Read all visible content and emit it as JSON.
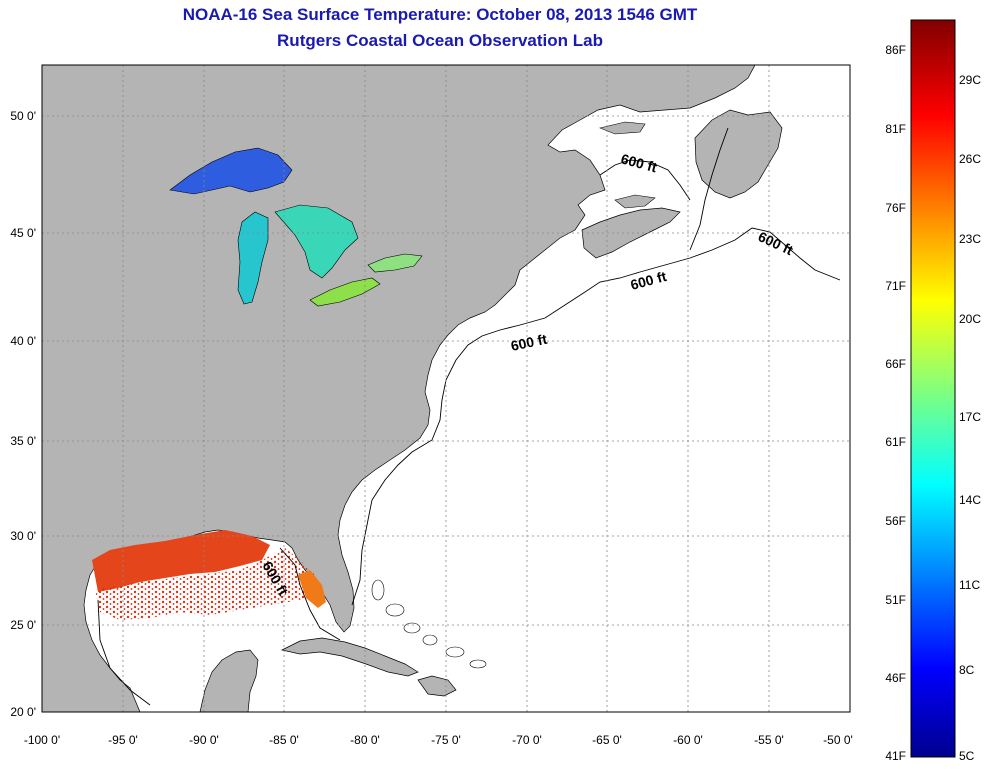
{
  "header": {
    "title": "NOAA-16 Sea Surface Temperature:  October 08, 2013 1546 GMT",
    "subtitle": "Rutgers Coastal Ocean Observation Lab"
  },
  "map": {
    "lon_ticks": [
      "-100 0'",
      "-95 0'",
      "-90 0'",
      "-85 0'",
      "-80 0'",
      "-75 0'",
      "-70 0'",
      "-65 0'",
      "-60 0'",
      "-55 0'",
      "-50 0'"
    ],
    "lat_ticks": [
      "50 0'",
      "45 0'",
      "40 0'",
      "35 0'",
      "30 0'",
      "25 0'",
      "20 0'"
    ],
    "contour_label": "600 ft",
    "colors": {
      "land": "#b4b4b4",
      "ocean": "#ffffff",
      "grid": "#888888"
    }
  },
  "colorbar": {
    "fahrenheit": [
      "86F",
      "81F",
      "76F",
      "71F",
      "66F",
      "61F",
      "56F",
      "51F",
      "46F",
      "41F"
    ],
    "celsius": [
      "29C",
      "26C",
      "23C",
      "20C",
      "17C",
      "14C",
      "11C",
      "8C",
      "5C"
    ]
  }
}
